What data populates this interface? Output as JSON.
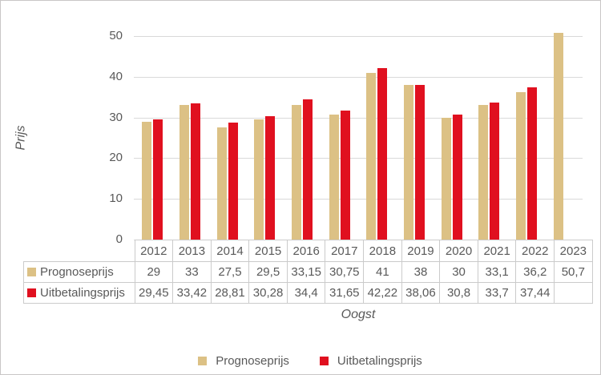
{
  "colors": {
    "prognose": "#dcc185",
    "uitbetaling": "#e0101f",
    "gridline": "#d9d9d9",
    "table_border": "#cbcbcb",
    "text": "#595959"
  },
  "axes": {
    "y_title": "Prijs",
    "x_title": "Oogst",
    "y_ticks": [
      "50",
      "40",
      "30",
      "20",
      "10",
      "0"
    ]
  },
  "chart_data": {
    "type": "bar",
    "title": "",
    "xlabel": "Oogst",
    "ylabel": "Prijs",
    "ylim": [
      0,
      50
    ],
    "grid": true,
    "legend_position": "bottom",
    "categories": [
      "2012",
      "2013",
      "2014",
      "2015",
      "2016",
      "2017",
      "2018",
      "2019",
      "2020",
      "2021",
      "2022",
      "2023"
    ],
    "series": [
      {
        "name": "Prognoseprijs",
        "color": "#dcc185",
        "values": [
          29,
          33,
          27.5,
          29.5,
          33.15,
          30.75,
          41,
          38,
          30,
          33.1,
          36.2,
          50.7
        ],
        "display": [
          "29",
          "33",
          "27,5",
          "29,5",
          "33,15",
          "30,75",
          "41",
          "38",
          "30",
          "33,1",
          "36,2",
          "50,7"
        ]
      },
      {
        "name": "Uitbetalingsprijs",
        "color": "#e0101f",
        "values": [
          29.45,
          33.42,
          28.81,
          30.28,
          34.4,
          31.65,
          42.22,
          38.06,
          30.8,
          33.7,
          37.44,
          null
        ],
        "display": [
          "29,45",
          "33,42",
          "28,81",
          "30,28",
          "34,4",
          "31,65",
          "42,22",
          "38,06",
          "30,8",
          "33,7",
          "37,44",
          ""
        ]
      }
    ]
  },
  "legend": {
    "items": [
      {
        "label": "Prognoseprijs",
        "color": "#dcc185"
      },
      {
        "label": "Uitbetalingsprijs",
        "color": "#e0101f"
      }
    ]
  }
}
